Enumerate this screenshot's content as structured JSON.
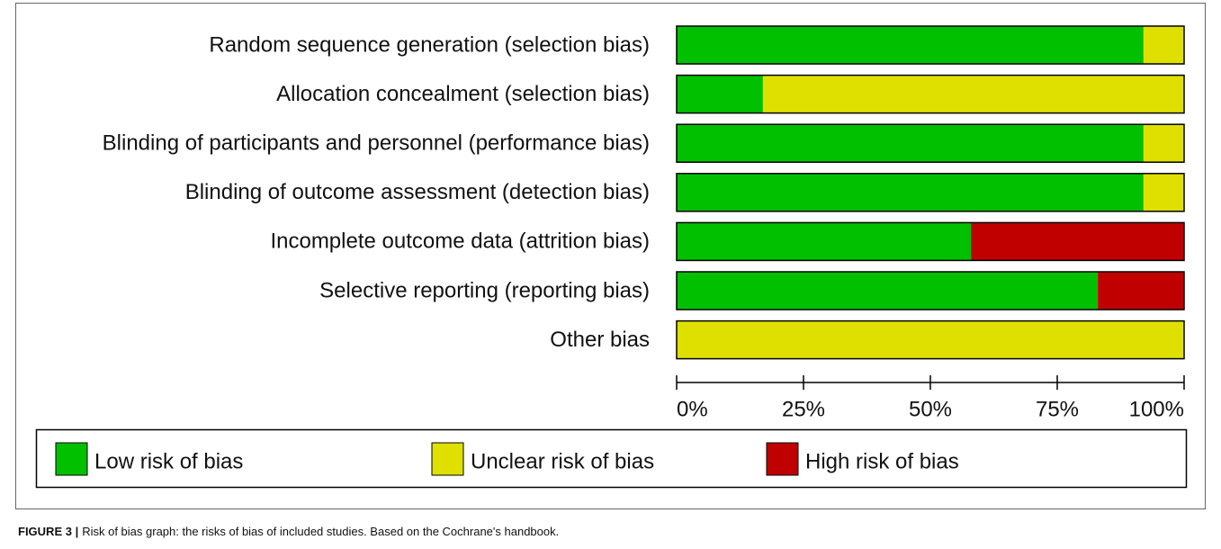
{
  "chart_data": {
    "type": "stacked_barh",
    "categories": [
      "Random sequence generation (selection bias)",
      "Allocation concealment (selection bias)",
      "Blinding of participants and personnel (performance bias)",
      "Blinding of outcome assessment (detection bias)",
      "Incomplete outcome data (attrition bias)",
      "Selective reporting (reporting bias)",
      "Other bias"
    ],
    "series": [
      {
        "name": "Low risk of bias",
        "color": "#00c000",
        "values": [
          92,
          17,
          92,
          92,
          58,
          83,
          0
        ]
      },
      {
        "name": "Unclear risk of bias",
        "color": "#e0e000",
        "values": [
          8,
          83,
          8,
          8,
          0,
          0,
          100
        ]
      },
      {
        "name": "High risk of bias",
        "color": "#c00000",
        "values": [
          0,
          0,
          0,
          0,
          42,
          17,
          0
        ]
      }
    ],
    "xlim": [
      0,
      100
    ],
    "xticks": [
      {
        "value": 0,
        "label": "0%"
      },
      {
        "value": 25,
        "label": "25%"
      },
      {
        "value": 50,
        "label": "50%"
      },
      {
        "value": 75,
        "label": "75%"
      },
      {
        "value": 100,
        "label": "100%"
      }
    ],
    "legend": "bottom"
  },
  "caption": {
    "label": "FIGURE 3 |",
    "text": "Risk of bias graph: the risks of bias of included studies. Based on the Cochrane's handbook."
  }
}
